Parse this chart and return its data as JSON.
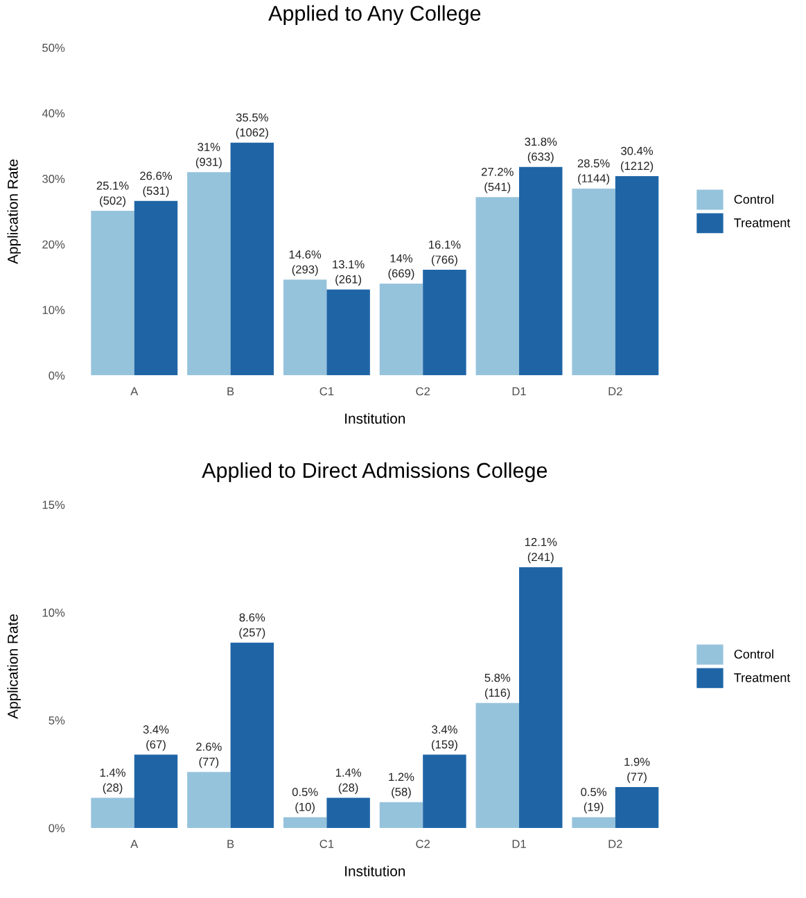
{
  "chart_data": [
    {
      "type": "bar",
      "title": "Applied to Any College",
      "xlabel": "Institution",
      "ylabel": "Application Rate",
      "categories": [
        "A",
        "B",
        "C1",
        "C2",
        "D1",
        "D2"
      ],
      "series": [
        {
          "name": "Control",
          "color": "#96c3dc",
          "values": [
            25.1,
            31,
            14.6,
            14,
            27.2,
            28.5
          ],
          "value_labels": [
            "25.1%\n(502)",
            "31%\n(931)",
            "14.6%\n(293)",
            "14%\n(669)",
            "27.2%\n(541)",
            "28.5%\n(1144)"
          ]
        },
        {
          "name": "Treatment",
          "color": "#1f65a6",
          "values": [
            26.6,
            35.5,
            13.1,
            16.1,
            31.8,
            30.4
          ],
          "value_labels": [
            "26.6%\n(531)",
            "35.5%\n(1062)",
            "13.1%\n(261)",
            "16.1%\n(766)",
            "31.8%\n(633)",
            "30.4%\n(1212)"
          ]
        }
      ],
      "ylim": [
        0,
        50
      ],
      "yticks": [
        {
          "value": 0,
          "label": "0%"
        },
        {
          "value": 10,
          "label": "10%"
        },
        {
          "value": 20,
          "label": "20%"
        },
        {
          "value": 30,
          "label": "30%"
        },
        {
          "value": 40,
          "label": "40%"
        },
        {
          "value": 50,
          "label": "50%"
        }
      ],
      "legend": "right"
    },
    {
      "type": "bar",
      "title": "Applied to Direct Admissions College",
      "xlabel": "Institution",
      "ylabel": "Application Rate",
      "categories": [
        "A",
        "B",
        "C1",
        "C2",
        "D1",
        "D2"
      ],
      "series": [
        {
          "name": "Control",
          "color": "#96c3dc",
          "values": [
            1.4,
            2.6,
            0.5,
            1.2,
            5.8,
            0.5
          ],
          "value_labels": [
            "1.4%\n(28)",
            "2.6%\n(77)",
            "0.5%\n(10)",
            "1.2%\n(58)",
            "5.8%\n(116)",
            "0.5%\n(19)"
          ]
        },
        {
          "name": "Treatment",
          "color": "#1f65a6",
          "values": [
            3.4,
            8.6,
            1.4,
            3.4,
            12.1,
            1.9
          ],
          "value_labels": [
            "3.4%\n(67)",
            "8.6%\n(257)",
            "1.4%\n(28)",
            "3.4%\n(159)",
            "12.1%\n(241)",
            "1.9%\n(77)"
          ]
        }
      ],
      "ylim": [
        0,
        15
      ],
      "yticks": [
        {
          "value": 0,
          "label": "0%"
        },
        {
          "value": 5,
          "label": "5%"
        },
        {
          "value": 10,
          "label": "10%"
        },
        {
          "value": 15,
          "label": "15%"
        }
      ],
      "legend": "right"
    }
  ]
}
